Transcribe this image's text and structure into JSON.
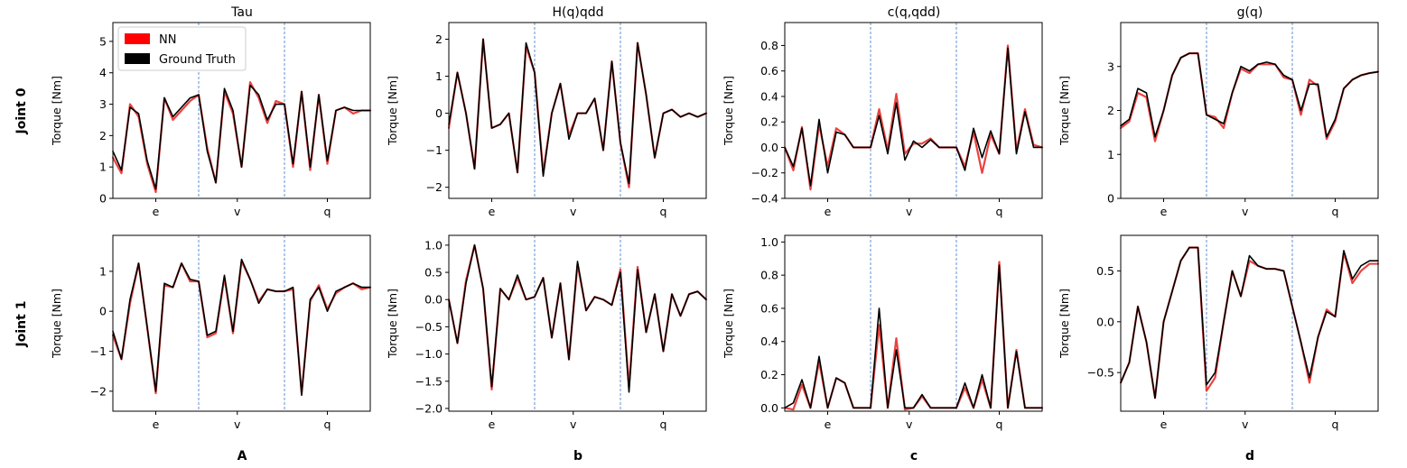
{
  "row_labels": [
    "Joint 0",
    "Joint 1"
  ],
  "column_titles": [
    "Tau",
    "H(q)qdd",
    "c(q,qdd)",
    "g(q)"
  ],
  "panel_letters": [
    "A",
    "b",
    "c",
    "d"
  ],
  "legend": {
    "placement": "upper-left of first panel",
    "entries": [
      {
        "label": "NN",
        "color": "#ff0000"
      },
      {
        "label": "Ground Truth",
        "color": "#000000"
      }
    ]
  },
  "colors": {
    "nn": "#e8211e",
    "ground_truth": "#000000",
    "segment_divider": "#3a75c4"
  },
  "chart_data": [
    {
      "type": "line",
      "row": 0,
      "col": 0,
      "title": "Tau",
      "ylabel": "Torque [Nm]",
      "x_tick_labels": [
        "e",
        "v",
        "q"
      ],
      "x": [
        0,
        0.1,
        0.2,
        0.3,
        0.4,
        0.5,
        0.6,
        0.7,
        0.8,
        0.9,
        1.0,
        1.1,
        1.2,
        1.3,
        1.4,
        1.5,
        1.6,
        1.7,
        1.8,
        1.9,
        2.0,
        2.1,
        2.2,
        2.3,
        2.4,
        2.5,
        2.6,
        2.7,
        2.8,
        2.9,
        3.0
      ],
      "ylim": [
        0,
        5.6
      ],
      "yticks": [
        0,
        1,
        2,
        3,
        4,
        5
      ],
      "dividers": [
        1,
        2
      ],
      "series": [
        {
          "name": "Ground Truth",
          "values": [
            1.5,
            0.9,
            2.9,
            2.7,
            1.2,
            0.3,
            3.2,
            2.6,
            2.9,
            3.2,
            3.3,
            1.5,
            0.5,
            3.5,
            2.8,
            1.0,
            3.6,
            3.3,
            2.5,
            3.0,
            3.0,
            1.1,
            3.4,
            1.0,
            3.3,
            1.2,
            2.8,
            2.9,
            2.8,
            2.8,
            2.8
          ]
        },
        {
          "name": "NN",
          "values": [
            1.3,
            0.8,
            3.0,
            2.6,
            1.1,
            0.2,
            3.2,
            2.5,
            2.8,
            3.1,
            3.3,
            1.6,
            0.5,
            3.4,
            2.7,
            1.0,
            3.7,
            3.2,
            2.4,
            3.1,
            3.0,
            1.0,
            3.4,
            0.9,
            3.3,
            1.1,
            2.8,
            2.9,
            2.7,
            2.8,
            2.8
          ]
        }
      ]
    },
    {
      "type": "line",
      "row": 0,
      "col": 1,
      "title": "H(q)qdd",
      "ylabel": "Torque [Nm]",
      "x_tick_labels": [
        "e",
        "v",
        "q"
      ],
      "x": [
        0,
        0.1,
        0.2,
        0.3,
        0.4,
        0.5,
        0.6,
        0.7,
        0.8,
        0.9,
        1.0,
        1.1,
        1.2,
        1.3,
        1.4,
        1.5,
        1.6,
        1.7,
        1.8,
        1.9,
        2.0,
        2.1,
        2.2,
        2.3,
        2.4,
        2.5,
        2.6,
        2.7,
        2.8,
        2.9,
        3.0
      ],
      "ylim": [
        -2.3,
        2.45
      ],
      "yticks": [
        -2,
        -1,
        0,
        1,
        2
      ],
      "dividers": [
        1,
        2
      ],
      "series": [
        {
          "name": "Ground Truth",
          "values": [
            -0.3,
            1.1,
            0.0,
            -1.5,
            2.0,
            -0.4,
            -0.3,
            0.0,
            -1.6,
            1.9,
            1.1,
            -1.7,
            0.0,
            0.8,
            -0.7,
            0.0,
            0.0,
            0.4,
            -1.0,
            1.4,
            -0.8,
            -1.9,
            1.9,
            0.5,
            -1.2,
            0.0,
            0.1,
            -0.1,
            0.0,
            -0.1,
            0.0
          ]
        },
        {
          "name": "NN",
          "values": [
            -0.4,
            1.1,
            0.0,
            -1.5,
            2.0,
            -0.4,
            -0.3,
            0.0,
            -1.6,
            1.8,
            1.1,
            -1.6,
            0.0,
            0.8,
            -0.6,
            0.0,
            0.0,
            0.4,
            -1.0,
            1.4,
            -0.8,
            -2.0,
            1.9,
            0.5,
            -1.2,
            0.0,
            0.1,
            -0.1,
            0.0,
            -0.1,
            0.0
          ]
        }
      ]
    },
    {
      "type": "line",
      "row": 0,
      "col": 2,
      "title": "c(q,qdd)",
      "ylabel": "Torque [Nm]",
      "x_tick_labels": [
        "e",
        "v",
        "q"
      ],
      "x": [
        0,
        0.1,
        0.2,
        0.3,
        0.4,
        0.5,
        0.6,
        0.7,
        0.8,
        0.9,
        1.0,
        1.1,
        1.2,
        1.3,
        1.4,
        1.5,
        1.6,
        1.7,
        1.8,
        1.9,
        2.0,
        2.1,
        2.2,
        2.3,
        2.4,
        2.5,
        2.6,
        2.7,
        2.8,
        2.9,
        3.0
      ],
      "ylim": [
        -0.4,
        0.98
      ],
      "yticks": [
        -0.4,
        -0.2,
        0.0,
        0.2,
        0.4,
        0.6,
        0.8
      ],
      "dividers": [
        1,
        2
      ],
      "series": [
        {
          "name": "Ground Truth",
          "values": [
            0.0,
            -0.15,
            0.15,
            -0.3,
            0.22,
            -0.2,
            0.12,
            0.1,
            0.0,
            0.0,
            0.0,
            0.25,
            -0.05,
            0.35,
            -0.1,
            0.05,
            0.0,
            0.06,
            0.0,
            0.0,
            0.0,
            -0.18,
            0.15,
            -0.08,
            0.13,
            -0.05,
            0.78,
            -0.05,
            0.28,
            0.0,
            0.0
          ]
        },
        {
          "name": "NN",
          "values": [
            0.0,
            -0.18,
            0.16,
            -0.33,
            0.18,
            -0.15,
            0.15,
            0.1,
            0.0,
            0.0,
            0.0,
            0.3,
            -0.02,
            0.42,
            -0.05,
            0.03,
            0.03,
            0.07,
            0.0,
            0.0,
            0.0,
            -0.15,
            0.12,
            -0.2,
            0.1,
            -0.05,
            0.8,
            -0.03,
            0.3,
            0.02,
            0.0
          ]
        }
      ]
    },
    {
      "type": "line",
      "row": 0,
      "col": 3,
      "title": "g(q)",
      "ylabel": "Torque [Nm]",
      "x_tick_labels": [
        "e",
        "v",
        "q"
      ],
      "x": [
        0,
        0.1,
        0.2,
        0.3,
        0.4,
        0.5,
        0.6,
        0.7,
        0.8,
        0.9,
        1.0,
        1.1,
        1.2,
        1.3,
        1.4,
        1.5,
        1.6,
        1.7,
        1.8,
        1.9,
        2.0,
        2.1,
        2.2,
        2.3,
        2.4,
        2.5,
        2.6,
        2.7,
        2.8,
        2.9,
        3.0
      ],
      "ylim": [
        0,
        4.0
      ],
      "yticks": [
        0,
        1,
        2,
        3
      ],
      "dividers": [
        1,
        2
      ],
      "series": [
        {
          "name": "Ground Truth",
          "values": [
            1.65,
            1.8,
            2.5,
            2.4,
            1.4,
            2.0,
            2.8,
            3.2,
            3.3,
            3.3,
            1.9,
            1.8,
            1.7,
            2.4,
            3.0,
            2.9,
            3.05,
            3.1,
            3.05,
            2.8,
            2.7,
            2.0,
            2.6,
            2.6,
            1.4,
            1.8,
            2.5,
            2.7,
            2.8,
            2.85,
            2.88
          ]
        },
        {
          "name": "NN",
          "values": [
            1.6,
            1.75,
            2.4,
            2.3,
            1.3,
            2.0,
            2.8,
            3.2,
            3.3,
            3.3,
            1.9,
            1.85,
            1.6,
            2.4,
            2.95,
            2.85,
            3.05,
            3.05,
            3.05,
            2.75,
            2.7,
            1.9,
            2.7,
            2.55,
            1.35,
            1.75,
            2.5,
            2.7,
            2.8,
            2.85,
            2.88
          ]
        }
      ]
    },
    {
      "type": "line",
      "row": 1,
      "col": 0,
      "title": "",
      "ylabel": "Torque [Nm]",
      "x_tick_labels": [
        "e",
        "v",
        "q"
      ],
      "x": [
        0,
        0.1,
        0.2,
        0.3,
        0.4,
        0.5,
        0.6,
        0.7,
        0.8,
        0.9,
        1.0,
        1.1,
        1.2,
        1.3,
        1.4,
        1.5,
        1.6,
        1.7,
        1.8,
        1.9,
        2.0,
        2.1,
        2.2,
        2.3,
        2.4,
        2.5,
        2.6,
        2.7,
        2.8,
        2.9,
        3.0
      ],
      "ylim": [
        -2.5,
        1.9
      ],
      "yticks": [
        -2,
        -1,
        0,
        1
      ],
      "dividers": [
        1,
        2
      ],
      "series": [
        {
          "name": "Ground Truth",
          "values": [
            -0.5,
            -1.2,
            0.3,
            1.2,
            -0.4,
            -2.0,
            0.7,
            0.6,
            1.2,
            0.8,
            0.75,
            -0.6,
            -0.5,
            0.9,
            -0.5,
            1.3,
            0.8,
            0.2,
            0.55,
            0.5,
            0.5,
            0.6,
            -2.1,
            0.3,
            0.6,
            0.0,
            0.5,
            0.6,
            0.7,
            0.6,
            0.6
          ]
        },
        {
          "name": "NN",
          "values": [
            -0.6,
            -1.2,
            0.2,
            1.2,
            -0.4,
            -2.05,
            0.65,
            0.6,
            1.2,
            0.75,
            0.75,
            -0.65,
            -0.55,
            0.85,
            -0.55,
            1.25,
            0.8,
            0.25,
            0.55,
            0.5,
            0.5,
            0.55,
            -2.05,
            0.25,
            0.65,
            0.05,
            0.45,
            0.6,
            0.7,
            0.55,
            0.6
          ]
        }
      ]
    },
    {
      "type": "line",
      "row": 1,
      "col": 1,
      "title": "",
      "ylabel": "Torque [Nm]",
      "x_tick_labels": [
        "e",
        "v",
        "q"
      ],
      "x": [
        0,
        0.1,
        0.2,
        0.3,
        0.4,
        0.5,
        0.6,
        0.7,
        0.8,
        0.9,
        1.0,
        1.1,
        1.2,
        1.3,
        1.4,
        1.5,
        1.6,
        1.7,
        1.8,
        1.9,
        2.0,
        2.1,
        2.2,
        2.3,
        2.4,
        2.5,
        2.6,
        2.7,
        2.8,
        2.9,
        3.0
      ],
      "ylim": [
        -2.05,
        1.18
      ],
      "yticks": [
        -2.0,
        -1.5,
        -1.0,
        -0.5,
        0.0,
        0.5,
        1.0
      ],
      "dividers": [
        1,
        2
      ],
      "series": [
        {
          "name": "Ground Truth",
          "values": [
            0.0,
            -0.8,
            0.3,
            1.0,
            0.2,
            -1.6,
            0.2,
            0.0,
            0.45,
            0.0,
            0.05,
            0.4,
            -0.7,
            0.3,
            -1.1,
            0.7,
            -0.2,
            0.05,
            0.0,
            -0.1,
            0.5,
            -1.7,
            0.55,
            -0.6,
            0.1,
            -0.95,
            0.1,
            -0.3,
            0.1,
            0.15,
            0.0
          ]
        },
        {
          "name": "NN",
          "values": [
            0.0,
            -0.8,
            0.35,
            1.0,
            0.2,
            -1.65,
            0.2,
            0.0,
            0.4,
            0.0,
            0.05,
            0.4,
            -0.7,
            0.3,
            -1.1,
            0.65,
            -0.2,
            0.05,
            0.0,
            -0.1,
            0.55,
            -1.6,
            0.6,
            -0.6,
            0.1,
            -0.95,
            0.1,
            -0.3,
            0.1,
            0.15,
            0.0
          ]
        }
      ]
    },
    {
      "type": "line",
      "row": 1,
      "col": 2,
      "title": "",
      "ylabel": "Torque [Nm]",
      "x_tick_labels": [
        "e",
        "v",
        "q"
      ],
      "x": [
        0,
        0.1,
        0.2,
        0.3,
        0.4,
        0.5,
        0.6,
        0.7,
        0.8,
        0.9,
        1.0,
        1.1,
        1.2,
        1.3,
        1.4,
        1.5,
        1.6,
        1.7,
        1.8,
        1.9,
        2.0,
        2.1,
        2.2,
        2.3,
        2.4,
        2.5,
        2.6,
        2.7,
        2.8,
        2.9,
        3.0
      ],
      "ylim": [
        -0.02,
        1.04
      ],
      "yticks": [
        0.0,
        0.2,
        0.4,
        0.6,
        0.8,
        1.0
      ],
      "dividers": [
        1,
        2
      ],
      "series": [
        {
          "name": "Ground Truth",
          "values": [
            0.0,
            0.03,
            0.17,
            0.0,
            0.31,
            0.0,
            0.18,
            0.15,
            0.0,
            0.0,
            0.0,
            0.6,
            0.0,
            0.35,
            0.0,
            0.0,
            0.08,
            0.0,
            0.0,
            0.0,
            0.0,
            0.15,
            0.0,
            0.2,
            0.0,
            0.86,
            0.0,
            0.34,
            0.0,
            0.0,
            0.0
          ]
        },
        {
          "name": "NN",
          "values": [
            0.0,
            -0.01,
            0.14,
            0.0,
            0.28,
            0.0,
            0.18,
            0.15,
            0.0,
            0.0,
            0.0,
            0.5,
            0.0,
            0.42,
            -0.01,
            0.0,
            0.07,
            0.0,
            0.0,
            0.0,
            0.0,
            0.12,
            0.0,
            0.17,
            0.0,
            0.88,
            0.0,
            0.35,
            0.0,
            0.0,
            0.0
          ]
        }
      ]
    },
    {
      "type": "line",
      "row": 1,
      "col": 3,
      "title": "",
      "ylabel": "Torque [Nm]",
      "x_tick_labels": [
        "e",
        "v",
        "q"
      ],
      "x": [
        0,
        0.1,
        0.2,
        0.3,
        0.4,
        0.5,
        0.6,
        0.7,
        0.8,
        0.9,
        1.0,
        1.1,
        1.2,
        1.3,
        1.4,
        1.5,
        1.6,
        1.7,
        1.8,
        1.9,
        2.0,
        2.1,
        2.2,
        2.3,
        2.4,
        2.5,
        2.6,
        2.7,
        2.8,
        2.9,
        3.0
      ],
      "ylim": [
        -0.88,
        0.85
      ],
      "yticks": [
        -0.5,
        0.0,
        0.5
      ],
      "dividers": [
        1,
        2
      ],
      "series": [
        {
          "name": "Ground Truth",
          "values": [
            -0.6,
            -0.4,
            0.15,
            -0.2,
            -0.75,
            0.0,
            0.3,
            0.6,
            0.73,
            0.73,
            -0.62,
            -0.5,
            0.0,
            0.5,
            0.25,
            0.65,
            0.55,
            0.52,
            0.52,
            0.5,
            0.15,
            -0.2,
            -0.55,
            -0.15,
            0.1,
            0.05,
            0.7,
            0.42,
            0.55,
            0.6,
            0.6
          ]
        },
        {
          "name": "NN",
          "values": [
            -0.6,
            -0.4,
            0.15,
            -0.2,
            -0.75,
            0.0,
            0.3,
            0.6,
            0.73,
            0.73,
            -0.68,
            -0.55,
            0.0,
            0.5,
            0.25,
            0.6,
            0.55,
            0.52,
            0.52,
            0.5,
            0.15,
            -0.2,
            -0.6,
            -0.15,
            0.12,
            0.05,
            0.68,
            0.38,
            0.5,
            0.57,
            0.57
          ]
        }
      ]
    }
  ]
}
